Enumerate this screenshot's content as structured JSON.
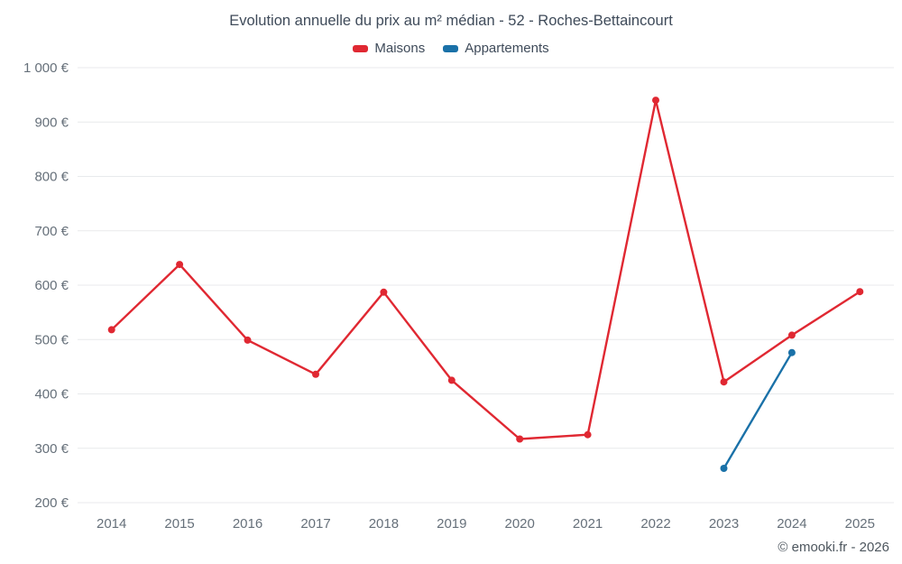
{
  "header": {
    "title": "Evolution annuelle du prix au m² médian - 52 - Roches-Bettaincourt"
  },
  "footer": {
    "credit": "© emooki.fr - 2026"
  },
  "chart_data": {
    "type": "line",
    "categories": [
      "2014",
      "2015",
      "2016",
      "2017",
      "2018",
      "2019",
      "2020",
      "2021",
      "2022",
      "2023",
      "2024",
      "2025"
    ],
    "series": [
      {
        "name": "Maisons",
        "color": "#e02832",
        "values": [
          518,
          638,
          499,
          436,
          587,
          425,
          317,
          325,
          940,
          422,
          508,
          588
        ]
      },
      {
        "name": "Appartements",
        "color": "#1a71a8",
        "values": [
          null,
          null,
          null,
          null,
          null,
          null,
          null,
          null,
          null,
          263,
          476,
          null
        ]
      }
    ],
    "ylim": [
      200,
      1000
    ],
    "ytick_step": 100,
    "y_suffix": " €",
    "grid": "horizontal",
    "gridline_color": "#e8eaec",
    "legend_position": "top"
  }
}
